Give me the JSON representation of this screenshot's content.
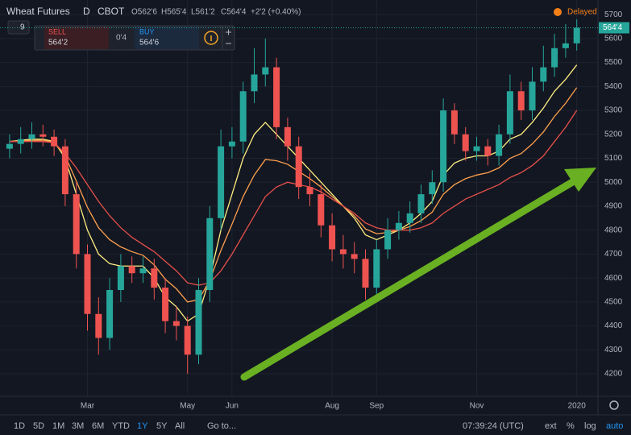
{
  "header": {
    "title": "Wheat Futures",
    "interval": "D",
    "exchange": "CBOT",
    "ohlc": [
      "O562'6",
      "H565'4",
      "L561'2",
      "C564'4"
    ],
    "change": "+2'2 (+0.40%)",
    "status": "Delayed",
    "interval_box": "9"
  },
  "trade_panel": {
    "sell_label": "SELL",
    "sell_price": "564'2",
    "spread": "0'4",
    "buy_label": "BUY",
    "buy_price": "564'6"
  },
  "toolbar": {
    "ranges": [
      "1D",
      "5D",
      "1M",
      "3M",
      "6M",
      "YTD",
      "1Y",
      "5Y",
      "All"
    ],
    "goto": "Go to...",
    "time": "07:39:24 (UTC)",
    "options": [
      "ext",
      "%",
      "log",
      "auto"
    ]
  },
  "chart_data": {
    "type": "candlestick",
    "categories": [
      null,
      null,
      null,
      null,
      null,
      null,
      null,
      "Mar",
      null,
      null,
      null,
      null,
      null,
      null,
      null,
      null,
      "May",
      null,
      null,
      null,
      "Jun",
      null,
      null,
      null,
      null,
      null,
      null,
      null,
      null,
      "Aug",
      null,
      null,
      null,
      "Sep",
      null,
      null,
      null,
      null,
      null,
      null,
      null,
      null,
      "Nov",
      null,
      null,
      null,
      null,
      null,
      null,
      null,
      null,
      "2020"
    ],
    "open": [
      5140,
      5160,
      5180,
      5200,
      5190,
      5150,
      4950,
      4700,
      4450,
      4350,
      4550,
      4650,
      4620,
      4640,
      4560,
      4420,
      4400,
      4280,
      4550,
      4850,
      5150,
      5170,
      5380,
      5450,
      5480,
      5230,
      5150,
      4980,
      4950,
      4820,
      4720,
      4700,
      4680,
      4560,
      4720,
      4800,
      4830,
      4870,
      4950,
      5000,
      5300,
      5200,
      5130,
      5150,
      5110,
      5200,
      5380,
      5300,
      5420,
      5480,
      5560,
      5580
    ],
    "high": [
      5200,
      5230,
      5250,
      5240,
      5220,
      5180,
      5000,
      4740,
      4520,
      4600,
      4700,
      4690,
      4690,
      4680,
      4600,
      4480,
      4440,
      4600,
      4900,
      5220,
      5230,
      5420,
      5560,
      5600,
      5520,
      5270,
      5190,
      5040,
      4990,
      4870,
      4780,
      4750,
      4720,
      4760,
      4850,
      4880,
      4920,
      4990,
      5050,
      5350,
      5330,
      5230,
      5190,
      5180,
      5240,
      5450,
      5420,
      5480,
      5570,
      5620,
      5660,
      5680
    ],
    "low": [
      5100,
      5120,
      5140,
      5150,
      5110,
      4900,
      4640,
      4380,
      4280,
      4300,
      4500,
      4580,
      4580,
      4510,
      4370,
      4340,
      4200,
      4240,
      4500,
      4800,
      5100,
      5120,
      5330,
      5400,
      5180,
      5090,
      4930,
      4900,
      4770,
      4670,
      4640,
      4620,
      4510,
      4520,
      4680,
      4760,
      4790,
      4830,
      4910,
      4960,
      5160,
      5090,
      5090,
      5070,
      5070,
      5160,
      5260,
      5260,
      5380,
      5440,
      5520,
      5550
    ],
    "close": [
      5160,
      5180,
      5200,
      5190,
      5150,
      4950,
      4700,
      4450,
      4350,
      4550,
      4650,
      4620,
      4640,
      4560,
      4420,
      4400,
      4280,
      4550,
      4850,
      5150,
      5170,
      5380,
      5450,
      5480,
      5230,
      5150,
      4980,
      4950,
      4820,
      4720,
      4700,
      4680,
      4560,
      4720,
      4800,
      4830,
      4870,
      4950,
      5000,
      5300,
      5200,
      5130,
      5150,
      5110,
      5200,
      5380,
      5300,
      5420,
      5480,
      5560,
      5580,
      5645
    ],
    "up_color": "#26a69a",
    "down_color": "#ef5350",
    "ribbons": [
      {
        "color": "#ffee80",
        "values": [
          5170,
          5175,
          5180,
          5180,
          5170,
          5100,
          4950,
          4800,
          4700,
          4660,
          4650,
          4650,
          4650,
          4600,
          4520,
          4480,
          4420,
          4450,
          4600,
          4800,
          4950,
          5100,
          5200,
          5250,
          5200,
          5150,
          5100,
          5050,
          5000,
          4950,
          4900,
          4850,
          4780,
          4760,
          4780,
          4800,
          4830,
          4870,
          4920,
          5030,
          5080,
          5100,
          5110,
          5110,
          5130,
          5180,
          5200,
          5250,
          5310,
          5380,
          5430,
          5490
        ]
      },
      {
        "color": "#ffa04d",
        "values": [
          5170,
          5172,
          5175,
          5175,
          5168,
          5110,
          5005,
          4895,
          4810,
          4760,
          4730,
          4710,
          4695,
          4655,
          4595,
          4555,
          4500,
          4510,
          4590,
          4715,
          4825,
          4940,
          5030,
          5095,
          5090,
          5075,
          5045,
          5015,
          4980,
          4940,
          4900,
          4860,
          4805,
          4785,
          4790,
          4800,
          4815,
          4840,
          4875,
          4950,
          4990,
          5015,
          5030,
          5040,
          5060,
          5100,
          5120,
          5160,
          5210,
          5275,
          5330,
          5395
        ]
      },
      {
        "color": "#e5504a",
        "values": [
          5170,
          5170,
          5170,
          5170,
          5165,
          5120,
          5060,
          4990,
          4920,
          4860,
          4810,
          4770,
          4740,
          4710,
          4670,
          4630,
          4580,
          4570,
          4580,
          4630,
          4700,
          4780,
          4860,
          4940,
          4980,
          5000,
          4990,
          4980,
          4960,
          4930,
          4900,
          4870,
          4830,
          4810,
          4800,
          4800,
          4800,
          4810,
          4830,
          4870,
          4900,
          4930,
          4950,
          4970,
          4990,
          5020,
          5040,
          5070,
          5110,
          5170,
          5230,
          5300
        ]
      }
    ],
    "last_price": {
      "value": 5645,
      "label": "564'4"
    },
    "ylim": [
      4106,
      5761
    ],
    "yticks": [
      4200,
      4300,
      4400,
      4500,
      4600,
      4700,
      4800,
      4900,
      5000,
      5100,
      5200,
      5300,
      5400,
      5500,
      5600,
      5700
    ],
    "grid": true
  }
}
